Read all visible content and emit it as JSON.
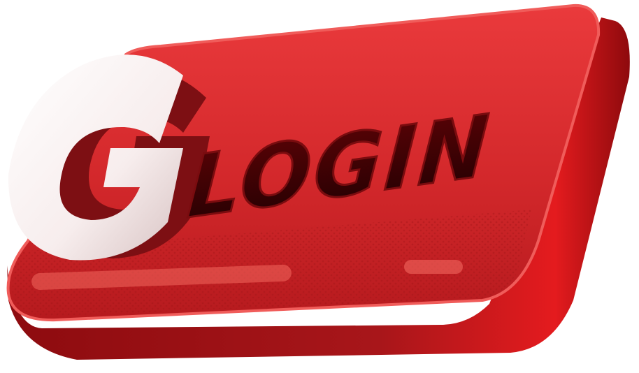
{
  "button": {
    "label": "LOGIN",
    "logo_letter": "G"
  },
  "colors": {
    "button_face": "#d92b2e",
    "button_face_light": "#ee4a4c",
    "button_side": "#a50f14",
    "button_side_dark": "#6e0709",
    "text_fill": "#3a0204",
    "text_stroke": "#7a0c0f",
    "logo_white": "#ffffff",
    "logo_dark": "#7d0f13",
    "highlight": "#f2675f"
  },
  "icons": {
    "logo": "g-logo-icon"
  }
}
